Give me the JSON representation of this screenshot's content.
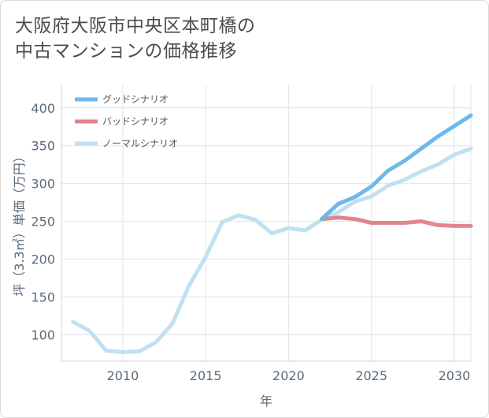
{
  "title_lines": [
    "大阪府大阪市中央区本町橋の",
    "中古マンションの価格推移"
  ],
  "chart_data": {
    "type": "line",
    "xlabel": "年",
    "ylabel": "坪（3.3㎡）単価（万円）",
    "xlim": [
      2006.3,
      2031
    ],
    "ylim": [
      65,
      430
    ],
    "x_ticks": [
      2010,
      2015,
      2020,
      2025,
      2030
    ],
    "y_ticks": [
      100,
      150,
      200,
      250,
      300,
      350,
      400
    ],
    "grid": true,
    "legend_position": "top-left",
    "series": [
      {
        "name": "ノーマルシナリオ",
        "color": "#bfe1f0",
        "x": [
          2007,
          2008,
          2009,
          2010,
          2011,
          2012,
          2013,
          2014,
          2015,
          2016,
          2017,
          2018,
          2019,
          2020,
          2021,
          2022,
          2023,
          2024,
          2025,
          2026,
          2027,
          2028,
          2029,
          2030,
          2031
        ],
        "y": [
          117,
          105,
          79,
          77,
          78,
          90,
          115,
          165,
          203,
          249,
          258,
          252,
          234,
          241,
          238,
          252,
          262,
          276,
          283,
          297,
          305,
          316,
          325,
          338,
          346
        ]
      },
      {
        "name": "バッドシナリオ",
        "color": "#e0868f",
        "x": [
          2022,
          2023,
          2024,
          2025,
          2026,
          2027,
          2028,
          2029,
          2030,
          2031
        ],
        "y": [
          253,
          255,
          253,
          248,
          248,
          248,
          250,
          245,
          244,
          244
        ]
      },
      {
        "name": "グッドシナリオ",
        "color": "#6eb8ea",
        "x": [
          2022,
          2023,
          2024,
          2025,
          2026,
          2027,
          2028,
          2029,
          2030,
          2031
        ],
        "y": [
          253,
          273,
          282,
          296,
          317,
          330,
          346,
          362,
          376,
          390
        ]
      }
    ],
    "legend_order": [
      2,
      1,
      0
    ]
  }
}
